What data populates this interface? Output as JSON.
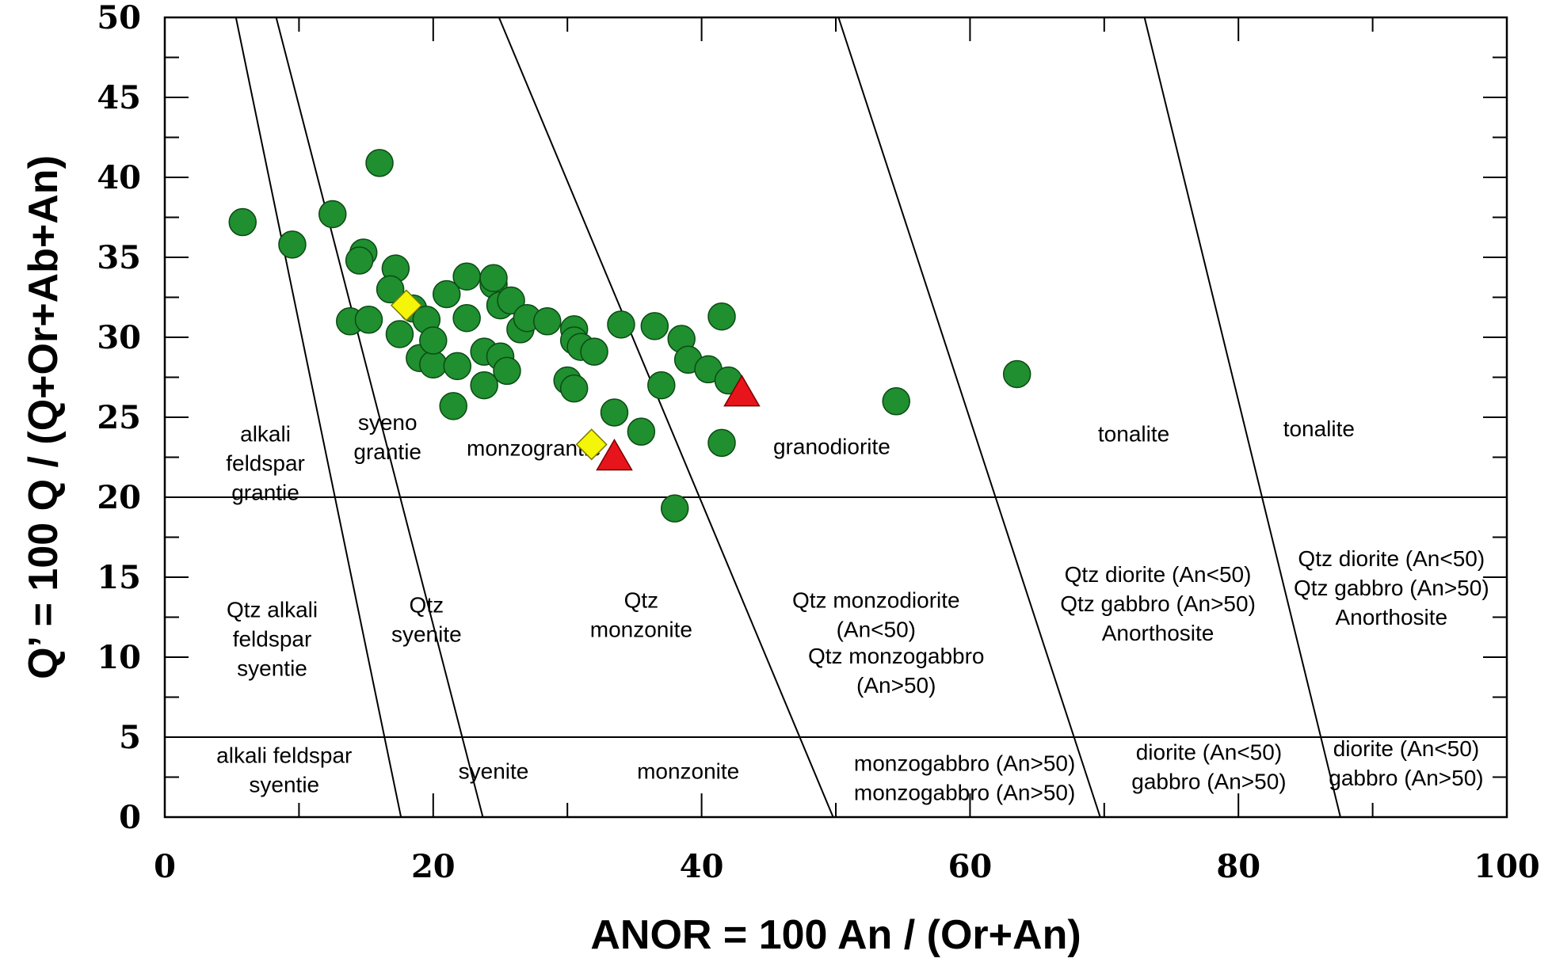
{
  "chart_data": {
    "type": "scatter",
    "title": "",
    "xlabel": "ANOR = 100 An / (Or+An)",
    "ylabel": "Q’ = 100 Q / (Q+Or+Ab+An)",
    "xlim": [
      0,
      100
    ],
    "ylim": [
      0,
      50
    ],
    "x_ticks": [
      "0",
      "20",
      "40",
      "60",
      "80",
      "100"
    ],
    "y_ticks": [
      "0",
      "5",
      "10",
      "15",
      "20",
      "25",
      "30",
      "35",
      "40",
      "45",
      "50"
    ],
    "grid": false,
    "field_boundaries": {
      "horizontal": [
        20,
        5
      ],
      "sloped": [
        [
          [
            5.3,
            50
          ],
          [
            17.6,
            0
          ]
        ],
        [
          [
            8.3,
            50
          ],
          [
            23.7,
            0
          ]
        ],
        [
          [
            24.9,
            50
          ],
          [
            49.8,
            0
          ]
        ],
        [
          [
            50.2,
            50
          ],
          [
            69.7,
            0
          ]
        ],
        [
          [
            73,
            50
          ],
          [
            87.6,
            0
          ]
        ]
      ]
    },
    "regions": [
      {
        "lines": [
          "alkali",
          "feldspar",
          "grantie"
        ],
        "x": 7.5,
        "y": 23.5
      },
      {
        "lines": [
          "syeno",
          "grantie"
        ],
        "x": 16.6,
        "y": 24.2
      },
      {
        "lines": [
          "monzograntie"
        ],
        "x": 27.5,
        "y": 22.6
      },
      {
        "lines": [
          "granodiorite"
        ],
        "x": 49.7,
        "y": 22.7
      },
      {
        "lines": [
          "tonalite"
        ],
        "x": 72.2,
        "y": 23.5
      },
      {
        "lines": [
          "tonalite"
        ],
        "x": 86,
        "y": 23.8
      },
      {
        "lines": [
          "Qtz alkali",
          "feldspar",
          "syentie"
        ],
        "x": 8,
        "y": 12.5
      },
      {
        "lines": [
          "Qtz",
          "syenite"
        ],
        "x": 19.5,
        "y": 12.8
      },
      {
        "lines": [
          "Qtz",
          "monzonite"
        ],
        "x": 35.5,
        "y": 13.1
      },
      {
        "lines": [
          "Qtz monzodiorite",
          "(An<50)"
        ],
        "x": 53,
        "y": 13.1
      },
      {
        "lines": [
          "Qtz monzogabbro",
          "(An>50)"
        ],
        "x": 54.5,
        "y": 9.6
      },
      {
        "lines": [
          "Qtz diorite (An<50)",
          "Qtz gabbro (An>50)",
          "Anorthosite"
        ],
        "x": 74,
        "y": 14.7
      },
      {
        "lines": [
          "Qtz diorite (An<50)",
          "Qtz gabbro (An>50)",
          "Anorthosite"
        ],
        "x": 91.4,
        "y": 15.7
      },
      {
        "lines": [
          "alkali feldspar",
          "syentie"
        ],
        "x": 8.9,
        "y": 3.4
      },
      {
        "lines": [
          "syenite"
        ],
        "x": 24.5,
        "y": 2.4
      },
      {
        "lines": [
          "monzonite"
        ],
        "x": 39,
        "y": 2.4
      },
      {
        "lines": [
          "monzogabbro (An>50)",
          "monzogabbro (An>50)"
        ],
        "x": 59.6,
        "y": 2.9
      },
      {
        "lines": [
          "diorite (An<50)",
          "gabbro (An>50)"
        ],
        "x": 77.8,
        "y": 3.6
      },
      {
        "lines": [
          "diorite (An<50)",
          "gabbro (An>50)"
        ],
        "x": 92.5,
        "y": 3.8
      }
    ],
    "series": [
      {
        "marker": "circle",
        "color": "#1f8f2f",
        "points": [
          [
            5.8,
            37.2
          ],
          [
            9.5,
            35.8
          ],
          [
            12.5,
            37.7
          ],
          [
            16,
            40.9
          ],
          [
            14.8,
            35.3
          ],
          [
            14.5,
            34.8
          ],
          [
            17.2,
            34.3
          ],
          [
            16.8,
            33
          ],
          [
            13.8,
            31
          ],
          [
            15.2,
            31.1
          ],
          [
            17.5,
            30.2
          ],
          [
            18.5,
            31.8
          ],
          [
            19,
            28.7
          ],
          [
            19.5,
            31.1
          ],
          [
            20,
            28.3
          ],
          [
            20,
            29.8
          ],
          [
            21,
            32.7
          ],
          [
            21.8,
            28.2
          ],
          [
            22.5,
            31.2
          ],
          [
            22.5,
            33.8
          ],
          [
            21.5,
            25.7
          ],
          [
            23.8,
            29.1
          ],
          [
            23.8,
            27
          ],
          [
            24.5,
            33.3
          ],
          [
            24.5,
            33.7
          ],
          [
            25,
            32
          ],
          [
            25,
            28.8
          ],
          [
            25.5,
            27.9
          ],
          [
            25.8,
            32.3
          ],
          [
            26.5,
            30.5
          ],
          [
            27,
            31.2
          ],
          [
            28.5,
            31
          ],
          [
            30.5,
            30.5
          ],
          [
            30.5,
            29.8
          ],
          [
            31,
            29.4
          ],
          [
            30,
            27.3
          ],
          [
            30.5,
            26.8
          ],
          [
            32,
            29.1
          ],
          [
            34,
            30.8
          ],
          [
            33.5,
            25.3
          ],
          [
            35.5,
            24.1
          ],
          [
            36.5,
            30.7
          ],
          [
            37,
            27
          ],
          [
            38.5,
            29.9
          ],
          [
            39,
            28.6
          ],
          [
            40.5,
            28
          ],
          [
            41.5,
            31.3
          ],
          [
            41.5,
            23.4
          ],
          [
            42,
            27.3
          ],
          [
            38,
            19.3
          ],
          [
            54.5,
            26
          ],
          [
            63.5,
            27.7
          ]
        ]
      },
      {
        "marker": "diamond",
        "color": "#f5f50a",
        "points": [
          [
            18,
            32
          ],
          [
            31.8,
            23.3
          ]
        ]
      },
      {
        "marker": "triangle",
        "color": "#e8141c",
        "points": [
          [
            33.5,
            22.6
          ],
          [
            43,
            26.6
          ]
        ]
      }
    ]
  }
}
